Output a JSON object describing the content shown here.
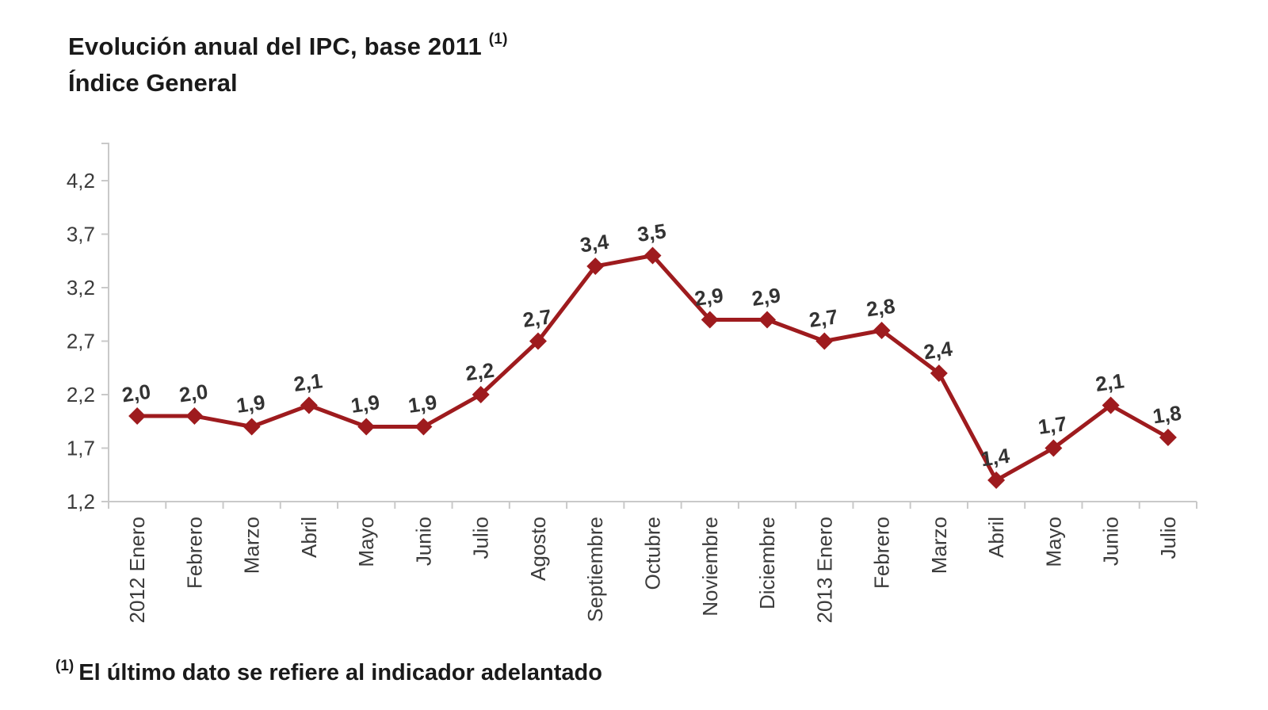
{
  "page": {
    "title": "Evolución anual del IPC, base 2011",
    "title_superscript": "(1)",
    "subtitle": "Índice General",
    "footnote_marker": "(1)",
    "footnote_text": "El último dato se refiere al indicador adelantado"
  },
  "chart_data": {
    "type": "line",
    "title": "Evolución anual del IPC, base 2011 (1)",
    "subtitle": "Índice General",
    "categories": [
      "2012 Enero",
      "Febrero",
      "Marzo",
      "Abril",
      "Mayo",
      "Junio",
      "Julio",
      "Agosto",
      "Septiembre",
      "Octubre",
      "Noviembre",
      "Diciembre",
      "2013 Enero",
      "Febrero",
      "Marzo",
      "Abril",
      "Mayo",
      "Junio",
      "Julio"
    ],
    "values": [
      2.0,
      2.0,
      1.9,
      2.1,
      1.9,
      1.9,
      2.2,
      2.7,
      3.4,
      3.5,
      2.9,
      2.9,
      2.7,
      2.8,
      2.4,
      1.4,
      1.7,
      2.1,
      1.8
    ],
    "value_labels": [
      "2,0",
      "2,0",
      "1,9",
      "2,1",
      "1,9",
      "1,9",
      "2,2",
      "2,7",
      "3,4",
      "3,5",
      "2,9",
      "2,9",
      "2,7",
      "2,8",
      "2,4",
      "1,4",
      "1,7",
      "2,1",
      "1,8"
    ],
    "y_ticks": [
      1.2,
      1.7,
      2.2,
      2.7,
      3.2,
      3.7,
      4.2
    ],
    "y_tick_labels": [
      "1,2",
      "1,7",
      "2,2",
      "2,7",
      "3,2",
      "3,7",
      "4,2"
    ],
    "ylim": [
      1.2,
      4.2
    ],
    "xlabel": "",
    "ylabel": "",
    "grid": false,
    "legend": false,
    "marker": "diamond",
    "line_color": "#9E1B1E",
    "marker_color": "#9E1B1E",
    "label_color": "#333333",
    "tick_label_color": "#3B3B3B",
    "axis_color": "#C9C9C9"
  }
}
